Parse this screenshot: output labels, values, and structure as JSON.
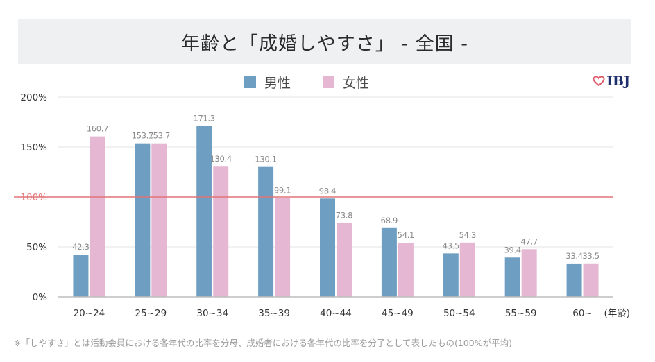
{
  "chart_data": {
    "type": "bar",
    "title": "年齢と「成婚しやすさ」 - 全国 -",
    "categories": [
      "20~24",
      "25~29",
      "30~34",
      "35~39",
      "40~44",
      "45~49",
      "50~54",
      "55~59",
      "60~"
    ],
    "series": [
      {
        "name": "男性",
        "color": "#6e9fc3",
        "values": [
          42.3,
          153.7,
          171.3,
          130.1,
          98.4,
          68.9,
          43.5,
          39.4,
          33.4
        ],
        "labels": [
          "42.3",
          "153.7",
          "171.3",
          "130.1",
          "98.4",
          "68.9",
          "43.5",
          "39.4",
          "33.4"
        ]
      },
      {
        "name": "女性",
        "color": "#e5b7d3",
        "values": [
          160.7,
          153.7,
          130.4,
          99.1,
          73.8,
          54.1,
          54.3,
          47.7,
          33.5
        ],
        "labels": [
          "160.7",
          "153.7",
          "130.4",
          "99.1",
          "73.8",
          "54.1",
          "54.3",
          "47.7",
          "33.5"
        ]
      }
    ],
    "yticks": [
      0,
      50,
      100,
      150,
      200
    ],
    "ytick_labels": [
      "0%",
      "50%",
      "100%",
      "150%",
      "200%"
    ],
    "ylim": [
      0,
      200
    ],
    "reference_line": {
      "value": 100,
      "label": "100%",
      "color": "#e07478"
    },
    "xlabel": "(年齢)",
    "ylabel": "",
    "grid": true,
    "legend_position": "top-center"
  },
  "footnote": "※「しやすさ」とは活動会員における各年代の比率を分母、成婚者における各年代の比率を分子として表したもの(100%が平均)",
  "logo": {
    "text": "IBJ",
    "icon": "heart-icon"
  }
}
